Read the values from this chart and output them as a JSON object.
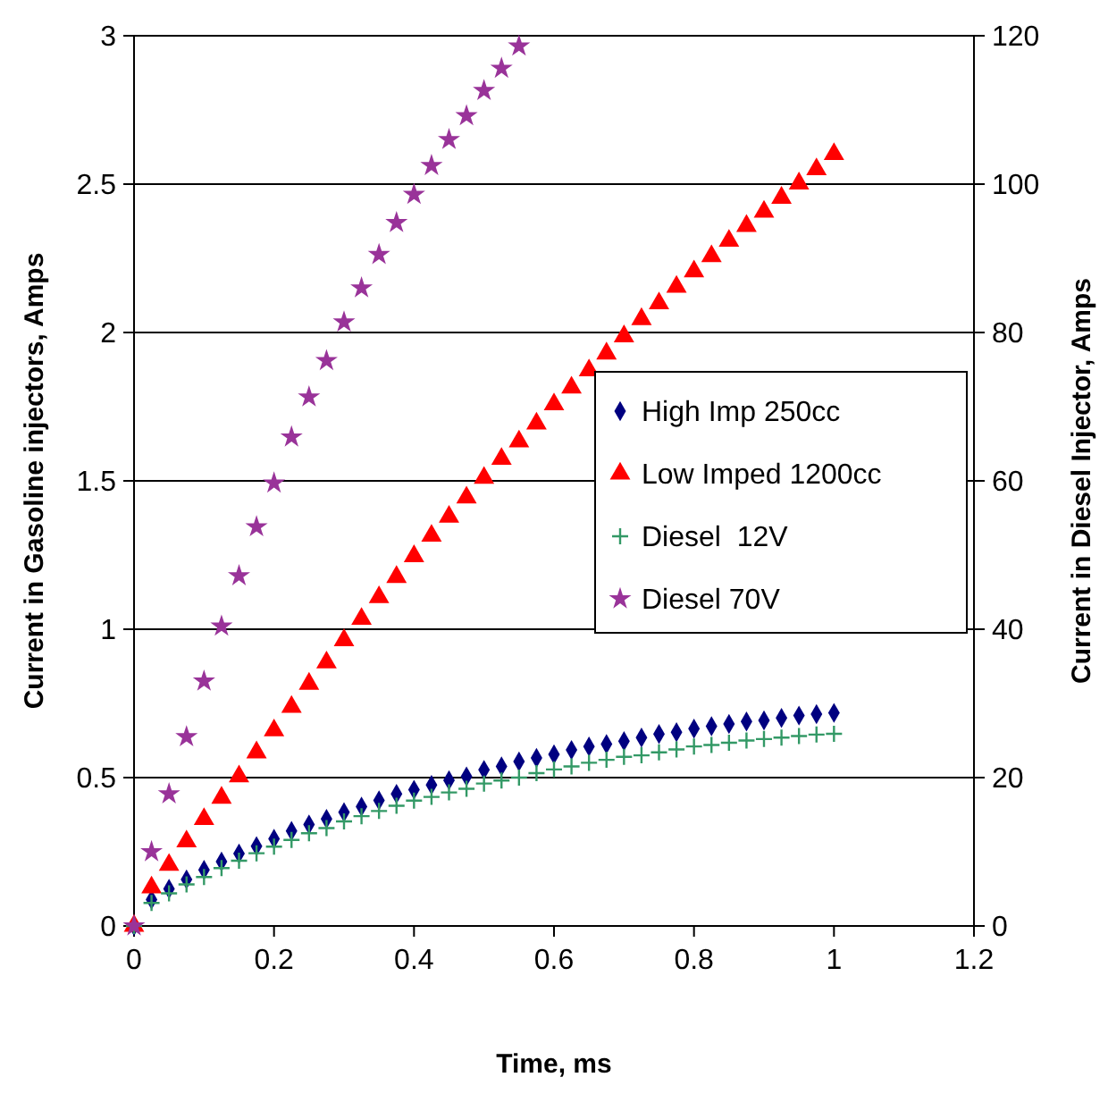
{
  "chart_data": {
    "type": "scatter",
    "xlabel": "Time, ms",
    "ylabel": "Current in Gasoline injectors, Amps",
    "y2label": "Current in Diesel Injector, Amps",
    "xlim": [
      0,
      1.2
    ],
    "xticks": [
      0,
      0.2,
      0.4,
      0.6,
      0.8,
      1,
      1.2
    ],
    "ylim": [
      0,
      3
    ],
    "yticks": [
      0,
      0.5,
      1,
      1.5,
      2,
      2.5,
      3
    ],
    "y2lim": [
      0,
      120
    ],
    "y2ticks": [
      0,
      20,
      40,
      60,
      80,
      100,
      120
    ],
    "grid": "y",
    "legend": "right",
    "series": [
      {
        "name": "High Imp 250cc",
        "color": "#000080",
        "marker": "diamond",
        "x": [
          0,
          0.025,
          0.05,
          0.075,
          0.1,
          0.125,
          0.15,
          0.175,
          0.2,
          0.225,
          0.25,
          0.275,
          0.3,
          0.325,
          0.35,
          0.375,
          0.4,
          0.425,
          0.45,
          0.475,
          0.5,
          0.525,
          0.55,
          0.575,
          0.6,
          0.625,
          0.65,
          0.675,
          0.7,
          0.725,
          0.75,
          0.775,
          0.8,
          0.825,
          0.85,
          0.875,
          0.9,
          0.925,
          0.95,
          0.975,
          1
        ],
        "values": [
          0,
          0.089,
          0.125,
          0.157,
          0.189,
          0.217,
          0.244,
          0.269,
          0.294,
          0.32,
          0.342,
          0.361,
          0.383,
          0.402,
          0.423,
          0.445,
          0.459,
          0.475,
          0.491,
          0.504,
          0.526,
          0.538,
          0.554,
          0.566,
          0.578,
          0.593,
          0.605,
          0.613,
          0.623,
          0.635,
          0.647,
          0.653,
          0.665,
          0.673,
          0.681,
          0.689,
          0.693,
          0.701,
          0.709,
          0.714,
          0.718
        ]
      },
      {
        "name": "Low Imped 1200cc",
        "color": "#ff0000",
        "marker": "triangle",
        "x": [
          0,
          0.025,
          0.05,
          0.075,
          0.1,
          0.125,
          0.15,
          0.175,
          0.2,
          0.225,
          0.25,
          0.275,
          0.3,
          0.325,
          0.35,
          0.375,
          0.4,
          0.425,
          0.45,
          0.475,
          0.5,
          0.525,
          0.55,
          0.575,
          0.6,
          0.625,
          0.65,
          0.675,
          0.7,
          0.725,
          0.75,
          0.775,
          0.8,
          0.825,
          0.85,
          0.875,
          0.9,
          0.925,
          0.95,
          0.975,
          1
        ],
        "values": [
          0,
          0.13,
          0.206,
          0.285,
          0.36,
          0.432,
          0.504,
          0.585,
          0.659,
          0.738,
          0.816,
          0.888,
          0.963,
          1.035,
          1.108,
          1.176,
          1.246,
          1.315,
          1.379,
          1.444,
          1.51,
          1.574,
          1.633,
          1.693,
          1.758,
          1.814,
          1.872,
          1.929,
          1.987,
          2.045,
          2.098,
          2.154,
          2.206,
          2.257,
          2.309,
          2.359,
          2.407,
          2.454,
          2.502,
          2.55,
          2.601
        ]
      },
      {
        "name": "Diesel  12V",
        "color": "#339966",
        "marker": "cross",
        "axis": "y2",
        "x": [
          0,
          0.025,
          0.05,
          0.075,
          0.1,
          0.125,
          0.15,
          0.175,
          0.2,
          0.225,
          0.25,
          0.275,
          0.3,
          0.325,
          0.35,
          0.375,
          0.4,
          0.425,
          0.45,
          0.475,
          0.5,
          0.525,
          0.55,
          0.575,
          0.6,
          0.625,
          0.65,
          0.675,
          0.7,
          0.725,
          0.75,
          0.775,
          0.8,
          0.825,
          0.85,
          0.875,
          0.9,
          0.925,
          0.95,
          0.975,
          1
        ],
        "values": [
          0,
          3.1,
          4.4,
          5.6,
          6.6,
          7.8,
          8.8,
          9.8,
          10.7,
          11.6,
          12.5,
          13.2,
          14.1,
          14.8,
          15.5,
          16.2,
          16.9,
          17.4,
          18,
          18.5,
          19.2,
          19.6,
          20,
          20.6,
          21.1,
          21.5,
          22,
          22.4,
          22.8,
          23,
          23.4,
          23.8,
          24.2,
          24.4,
          24.7,
          25,
          25.2,
          25.4,
          25.6,
          25.8,
          25.9
        ]
      },
      {
        "name": "Diesel 70V",
        "color": "#993399",
        "marker": "star",
        "axis": "y2",
        "x": [
          0,
          0.025,
          0.05,
          0.075,
          0.1,
          0.125,
          0.15,
          0.175,
          0.2,
          0.225,
          0.25,
          0.275,
          0.3,
          0.325,
          0.35,
          0.375,
          0.4,
          0.425,
          0.45,
          0.475,
          0.5,
          0.525,
          0.55
        ],
        "values": [
          0,
          10,
          17.8,
          25.5,
          33,
          40.4,
          47.2,
          53.8,
          59.7,
          65.9,
          71.3,
          76.2,
          81.4,
          86,
          90.5,
          94.8,
          98.6,
          102.5,
          106,
          109.2,
          112.6,
          115.6,
          118.6
        ]
      }
    ]
  }
}
